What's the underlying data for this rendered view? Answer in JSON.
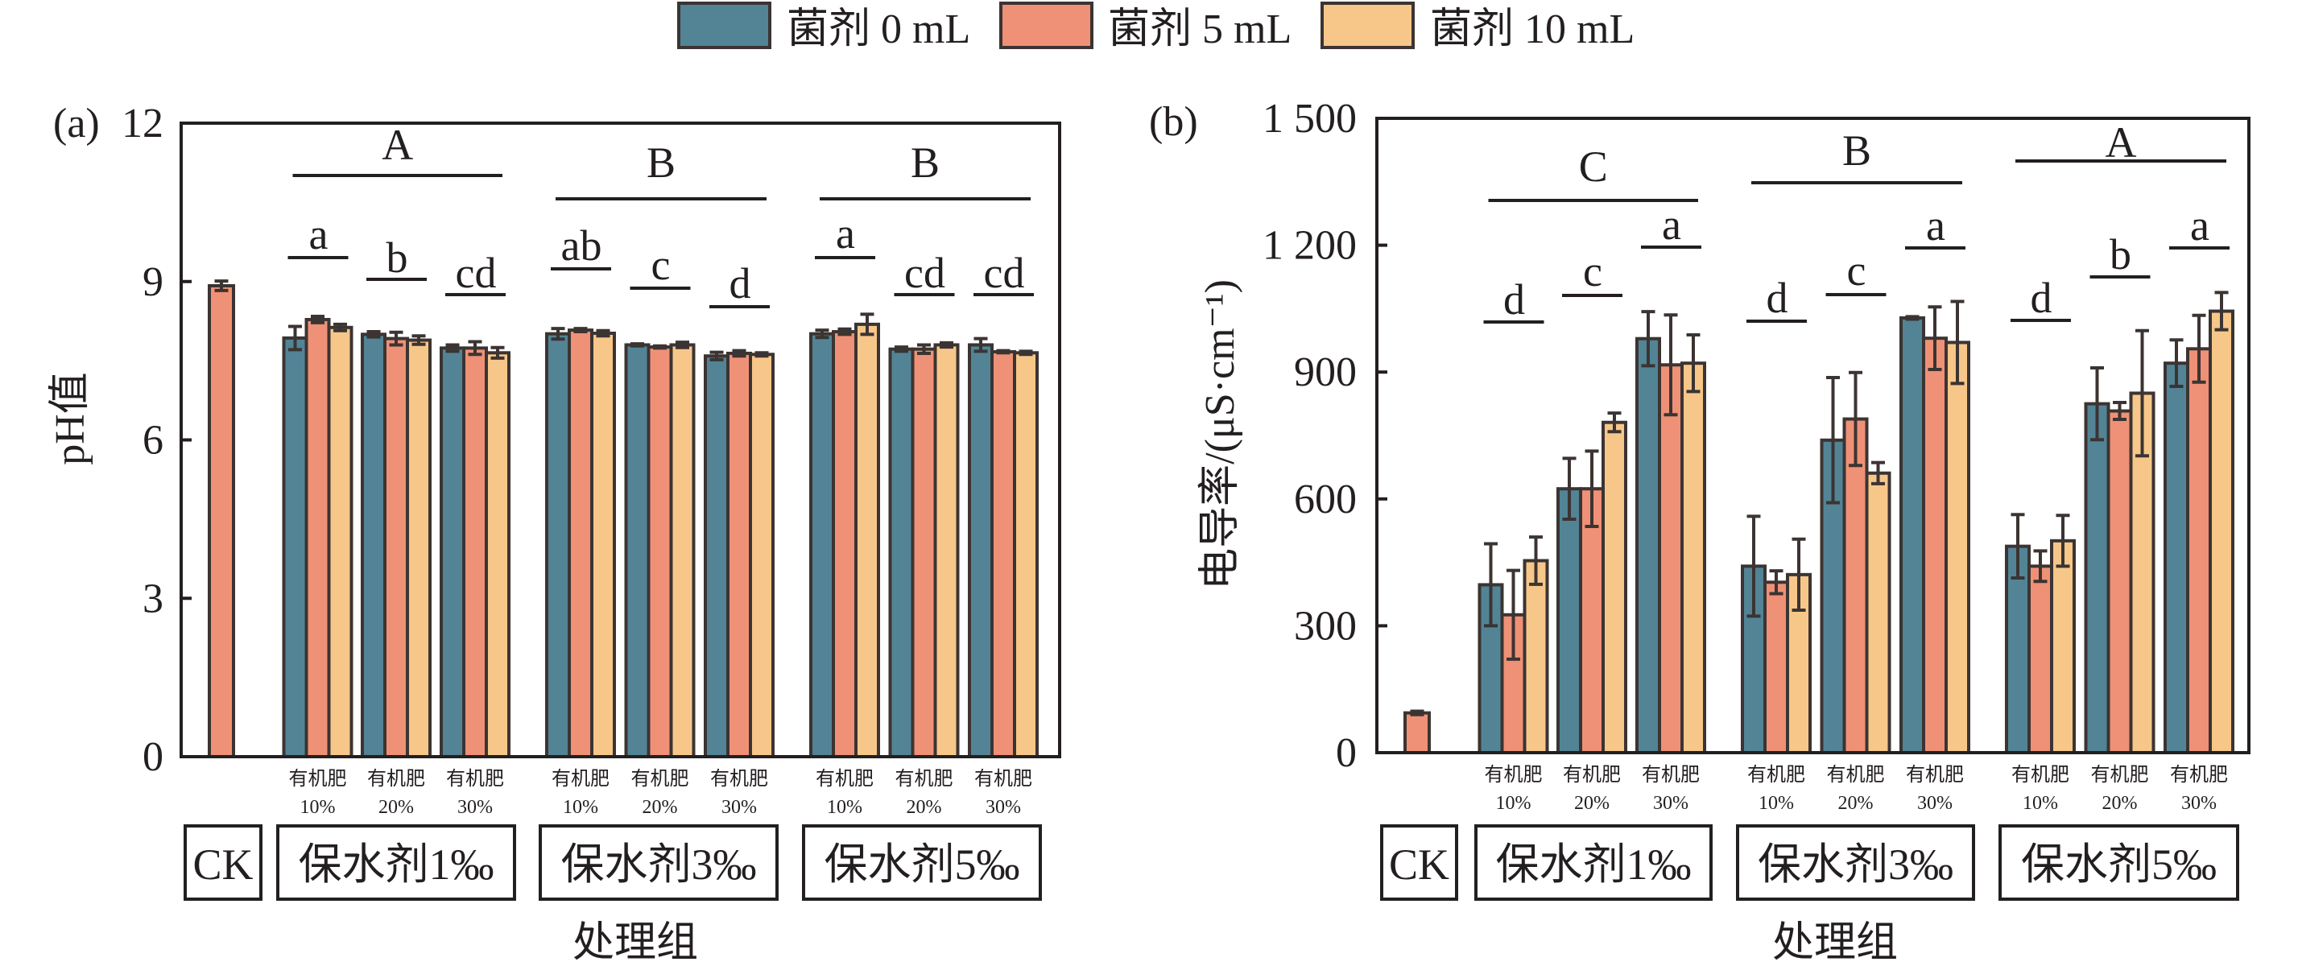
{
  "legend": {
    "placement": "top-center",
    "items": [
      {
        "label": "菌剂 0 mL",
        "color": "#528496"
      },
      {
        "label": "菌剂 5 mL",
        "color": "#ef9176"
      },
      {
        "label": "菌剂 10 mL",
        "color": "#f7c78a"
      }
    ]
  },
  "chart_data": [
    {
      "panel": "(a)",
      "type": "bar",
      "title": "",
      "xlabel": "处理组",
      "ylabel": "pH值",
      "ylim": [
        0,
        12
      ],
      "yticks": [
        0,
        3,
        6,
        9,
        12
      ],
      "ytick_labels": [
        "0",
        "3",
        "6",
        "9",
        "12"
      ],
      "grid": false,
      "legend": "top-center",
      "groups": [
        "CK",
        "保水剂1‰",
        "保水剂3‰",
        "保水剂5‰"
      ],
      "categories": [
        {
          "group": "保水剂1‰",
          "line1": "有机肥",
          "line2": "10%"
        },
        {
          "group": "保水剂1‰",
          "line1": "有机肥",
          "line2": "20%"
        },
        {
          "group": "保水剂1‰",
          "line1": "有机肥",
          "line2": "30%"
        },
        {
          "group": "保水剂3‰",
          "line1": "有机肥",
          "line2": "10%"
        },
        {
          "group": "保水剂3‰",
          "line1": "有机肥",
          "line2": "20%"
        },
        {
          "group": "保水剂3‰",
          "line1": "有机肥",
          "line2": "30%"
        },
        {
          "group": "保水剂5‰",
          "line1": "有机肥",
          "line2": "10%"
        },
        {
          "group": "保水剂5‰",
          "line1": "有机肥",
          "line2": "20%"
        },
        {
          "group": "保水剂5‰",
          "line1": "有机肥",
          "line2": "30%"
        }
      ],
      "control": {
        "label": "CK",
        "value": 8.92,
        "error": 0.09,
        "color": "#ef9176"
      },
      "series": [
        {
          "name": "菌剂 0 mL",
          "color": "#528496",
          "values": [
            7.93,
            8.0,
            7.74,
            8.01,
            7.8,
            7.59,
            8.01,
            7.72,
            7.8
          ],
          "errors": [
            0.22,
            0.05,
            0.06,
            0.1,
            0.02,
            0.07,
            0.07,
            0.04,
            0.12
          ]
        },
        {
          "name": "菌剂 5 mL",
          "color": "#ef9176",
          "values": [
            8.28,
            7.92,
            7.74,
            8.08,
            7.76,
            7.64,
            8.05,
            7.72,
            7.67
          ],
          "errors": [
            0.06,
            0.12,
            0.12,
            0.03,
            0.02,
            0.05,
            0.05,
            0.08,
            0.02
          ]
        },
        {
          "name": "菌剂 10 mL",
          "color": "#f7c78a",
          "values": [
            8.13,
            7.89,
            7.65,
            8.02,
            7.8,
            7.62,
            8.19,
            7.8,
            7.65
          ],
          "errors": [
            0.06,
            0.08,
            0.1,
            0.05,
            0.05,
            0.03,
            0.19,
            0.04,
            0.03
          ]
        }
      ],
      "significance": {
        "group_letters": [
          "A",
          "B",
          "B"
        ],
        "category_letters": [
          "a",
          "b",
          "cd",
          "ab",
          "c",
          "d",
          "a",
          "cd",
          "cd"
        ]
      }
    },
    {
      "panel": "(b)",
      "type": "bar",
      "title": "",
      "xlabel": "处理组",
      "ylabel": "电导率/(μS·cm⁻¹)",
      "ylim": [
        0,
        1500
      ],
      "yticks": [
        0,
        300,
        600,
        900,
        1200,
        1500
      ],
      "ytick_labels": [
        "0",
        "300",
        "600",
        "900",
        "1 200",
        "1 500"
      ],
      "grid": false,
      "legend": "top-center",
      "groups": [
        "CK",
        "保水剂1‰",
        "保水剂3‰",
        "保水剂5‰"
      ],
      "categories": [
        {
          "group": "保水剂1‰",
          "line1": "有机肥",
          "line2": "10%"
        },
        {
          "group": "保水剂1‰",
          "line1": "有机肥",
          "line2": "20%"
        },
        {
          "group": "保水剂1‰",
          "line1": "有机肥",
          "line2": "30%"
        },
        {
          "group": "保水剂3‰",
          "line1": "有机肥",
          "line2": "10%"
        },
        {
          "group": "保水剂3‰",
          "line1": "有机肥",
          "line2": "20%"
        },
        {
          "group": "保水剂3‰",
          "line1": "有机肥",
          "line2": "30%"
        },
        {
          "group": "保水剂5‰",
          "line1": "有机肥",
          "line2": "10%"
        },
        {
          "group": "保水剂5‰",
          "line1": "有机肥",
          "line2": "20%"
        },
        {
          "group": "保水剂5‰",
          "line1": "有机肥",
          "line2": "30%"
        }
      ],
      "control": {
        "label": "CK",
        "value": 94,
        "error": 4,
        "color": "#ef9176"
      },
      "series": [
        {
          "name": "菌剂 0 mL",
          "color": "#528496",
          "values": [
            397,
            624,
            979,
            441,
            739,
            1028,
            488,
            825,
            921
          ],
          "errors": [
            97,
            72,
            64,
            118,
            148,
            3,
            75,
            85,
            55
          ]
        },
        {
          "name": "菌剂 5 mL",
          "color": "#ef9176",
          "values": [
            326,
            624,
            917,
            403,
            789,
            980,
            441,
            808,
            955
          ],
          "errors": [
            105,
            89,
            118,
            27,
            110,
            74,
            36,
            20,
            79
          ]
        },
        {
          "name": "菌剂 10 mL",
          "color": "#f7c78a",
          "values": [
            454,
            781,
            921,
            421,
            661,
            970,
            501,
            850,
            1044
          ],
          "errors": [
            56,
            22,
            67,
            84,
            25,
            97,
            60,
            148,
            44
          ]
        }
      ],
      "significance": {
        "group_letters": [
          "C",
          "B",
          "A"
        ],
        "category_letters": [
          "d",
          "c",
          "a",
          "d",
          "c",
          "a",
          "d",
          "b",
          "a"
        ]
      }
    }
  ]
}
